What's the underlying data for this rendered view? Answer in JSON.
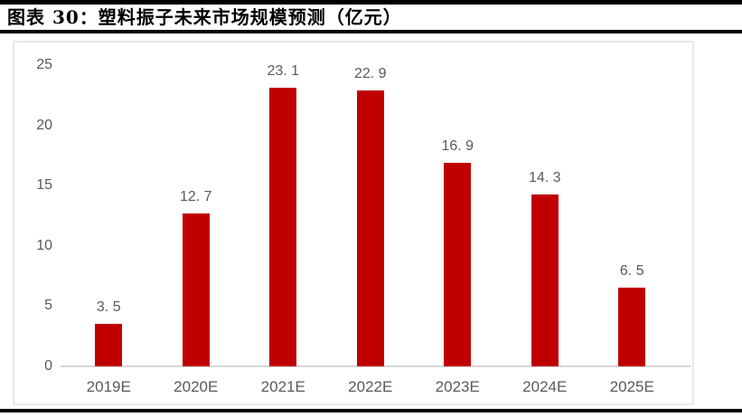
{
  "header": {
    "title": "图表 30：塑料振子未来市场规模预测（亿元）"
  },
  "colors": {
    "bar": "#c00000",
    "tick_label_text": "#595959",
    "axis_line": "#d6d6d6",
    "frame_border": "#e8e8e8",
    "rule": "#000000"
  },
  "chart_data": {
    "type": "bar",
    "title": "图表 30：塑料振子未来市场规模预测（亿元）",
    "categories": [
      "2019E",
      "2020E",
      "2021E",
      "2022E",
      "2023E",
      "2024E",
      "2025E"
    ],
    "values": [
      3.5,
      12.7,
      23.1,
      22.9,
      16.9,
      14.3,
      6.5
    ],
    "data_labels": [
      "3. 5",
      "12. 7",
      "23. 1",
      "22. 9",
      "16. 9",
      "14. 3",
      "6. 5"
    ],
    "xlabel": "",
    "ylabel": "",
    "ylim": [
      0,
      25
    ],
    "yticks": [
      0,
      5,
      10,
      15,
      20,
      25
    ],
    "ytick_labels": [
      "0",
      "5",
      "10",
      "15",
      "20",
      "25"
    ],
    "grid": false,
    "legend": "none",
    "bar_color": "#c00000"
  }
}
